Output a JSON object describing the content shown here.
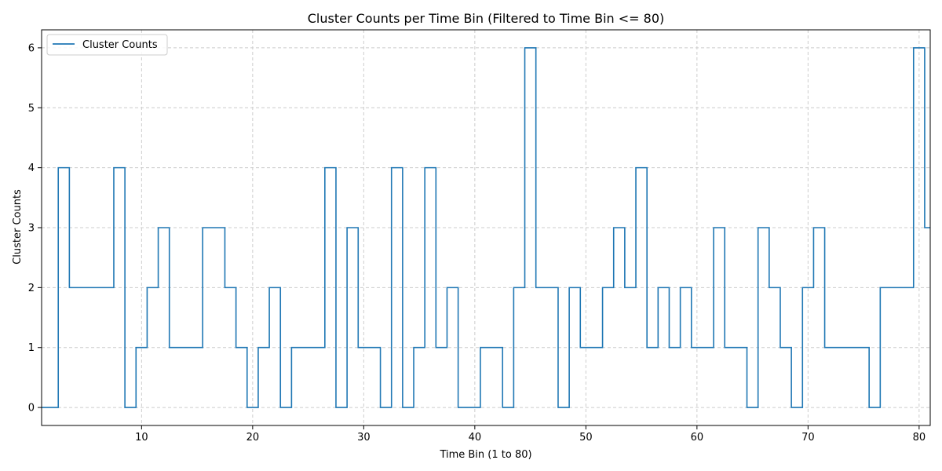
{
  "chart_data": {
    "type": "line",
    "drawstyle": "steps-mid",
    "title": "Cluster Counts per Time Bin (Filtered to Time Bin <= 80)",
    "xlabel": "Time Bin (1 to 80)",
    "ylabel": "Cluster Counts",
    "xlim": [
      1,
      81
    ],
    "ylim": [
      -0.3,
      6.3
    ],
    "xticks": [
      10,
      20,
      30,
      40,
      50,
      60,
      70,
      80
    ],
    "yticks": [
      0,
      1,
      2,
      3,
      4,
      5,
      6
    ],
    "grid": true,
    "legend_position": "top-left",
    "series": [
      {
        "name": "Cluster Counts",
        "color": "#1f77b4",
        "x": [
          1,
          2,
          3,
          4,
          5,
          6,
          7,
          8,
          9,
          10,
          11,
          12,
          13,
          14,
          15,
          16,
          17,
          18,
          19,
          20,
          21,
          22,
          23,
          24,
          25,
          26,
          27,
          28,
          29,
          30,
          31,
          32,
          33,
          34,
          35,
          36,
          37,
          38,
          39,
          40,
          41,
          42,
          43,
          44,
          45,
          46,
          47,
          48,
          49,
          50,
          51,
          52,
          53,
          54,
          55,
          56,
          57,
          58,
          59,
          60,
          61,
          62,
          63,
          64,
          65,
          66,
          67,
          68,
          69,
          70,
          71,
          72,
          73,
          74,
          75,
          76,
          77,
          78,
          79,
          80,
          81
        ],
        "values": [
          0,
          0,
          4,
          2,
          2,
          2,
          2,
          4,
          0,
          1,
          2,
          3,
          1,
          1,
          1,
          3,
          3,
          2,
          1,
          0,
          1,
          2,
          0,
          1,
          1,
          1,
          4,
          0,
          3,
          1,
          1,
          0,
          4,
          0,
          1,
          4,
          1,
          2,
          0,
          0,
          1,
          1,
          0,
          2,
          6,
          2,
          2,
          0,
          2,
          1,
          1,
          2,
          3,
          2,
          4,
          1,
          2,
          1,
          2,
          1,
          1,
          3,
          1,
          1,
          0,
          3,
          2,
          1,
          0,
          2,
          3,
          1,
          1,
          1,
          1,
          0,
          2,
          2,
          2,
          6,
          3
        ]
      }
    ]
  }
}
